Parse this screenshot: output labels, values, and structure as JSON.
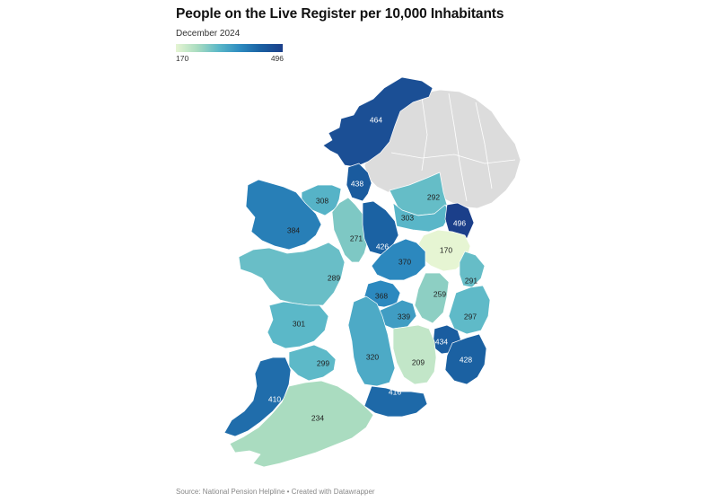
{
  "title": "People on the Live Register per 10,000 Inhabitants",
  "subtitle": "December 2024",
  "source": "Source: National Pension Helpline • Created with Datawrapper",
  "legend": {
    "min": "170",
    "max": "496",
    "colors": [
      "#e6f5d3",
      "#a9dcc0",
      "#5bb8c8",
      "#2d8bc0",
      "#1a5fa1",
      "#1b3f8a"
    ]
  },
  "no_data_color": "#dcdcdc",
  "counties": [
    {
      "label": "464",
      "value": 464
    },
    {
      "label": "438",
      "value": 438
    },
    {
      "label": "292",
      "value": 292
    },
    {
      "label": "308",
      "value": 308
    },
    {
      "label": "303",
      "value": 303
    },
    {
      "label": "496",
      "value": 496
    },
    {
      "label": "384",
      "value": 384
    },
    {
      "label": "271",
      "value": 271
    },
    {
      "label": "426",
      "value": 426
    },
    {
      "label": "170",
      "value": 170
    },
    {
      "label": "370",
      "value": 370
    },
    {
      "label": "289",
      "value": 289
    },
    {
      "label": "291",
      "value": 291
    },
    {
      "label": "368",
      "value": 368
    },
    {
      "label": "259",
      "value": 259
    },
    {
      "label": "339",
      "value": 339
    },
    {
      "label": "297",
      "value": 297
    },
    {
      "label": "301",
      "value": 301
    },
    {
      "label": "434",
      "value": 434
    },
    {
      "label": "299",
      "value": 299
    },
    {
      "label": "320",
      "value": 320
    },
    {
      "label": "209",
      "value": 209
    },
    {
      "label": "428",
      "value": 428
    },
    {
      "label": "410",
      "value": 410
    },
    {
      "label": "416",
      "value": 416
    },
    {
      "label": "234",
      "value": 234
    }
  ]
}
